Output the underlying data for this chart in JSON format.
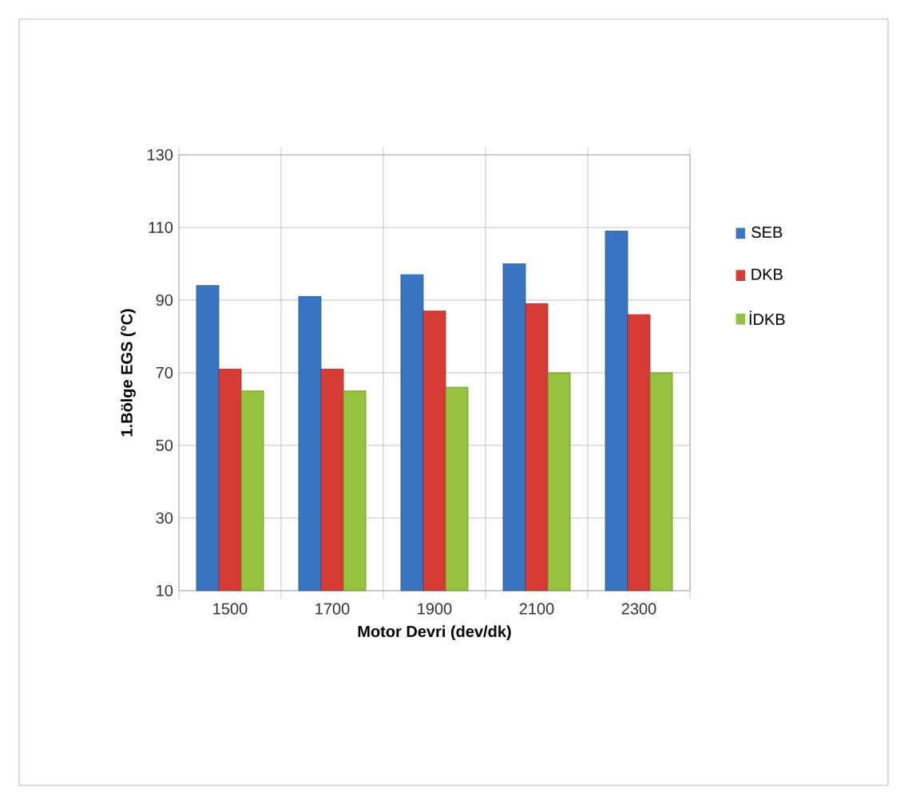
{
  "chart_data": {
    "type": "bar",
    "xlabel": "Motor Devri (dev/dk)",
    "ylabel": "1.Bölge  EGS  (°C)",
    "categories": [
      "1500",
      "1700",
      "1900",
      "2100",
      "2300"
    ],
    "series": [
      {
        "name": "SEB",
        "color": "#3a75c4",
        "values": [
          94,
          91,
          97,
          100,
          109
        ]
      },
      {
        "name": "DKB",
        "color": "#d63b36",
        "values": [
          71,
          71,
          87,
          89,
          86
        ]
      },
      {
        "name": "İDKB",
        "color": "#94c23f",
        "values": [
          65,
          65,
          66,
          70,
          70
        ]
      }
    ],
    "ylim": [
      10,
      130
    ],
    "yticks": [
      10,
      30,
      50,
      70,
      90,
      110,
      130
    ],
    "grid": true,
    "legend": "right"
  }
}
